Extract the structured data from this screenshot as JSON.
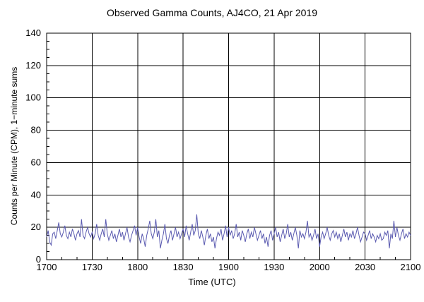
{
  "chart_data": {
    "type": "line",
    "title": "Observed Gamma Counts, AJ4CO, 21 Apr 2019",
    "xlabel": "Time (UTC)",
    "ylabel": "Counts per Minute (CPM), 1−minute sums",
    "x_tick_labels": [
      "1700",
      "1730",
      "1800",
      "1830",
      "1900",
      "1930",
      "2000",
      "2030",
      "2100"
    ],
    "y_tick_labels": [
      "0",
      "20",
      "40",
      "60",
      "80",
      "100",
      "120",
      "140"
    ],
    "xlim_minutes": [
      0,
      240
    ],
    "ylim": [
      0,
      140
    ],
    "x_major_interval_min": 30,
    "x_minor_interval_min": 10,
    "y_major_interval": 20,
    "y_minor_interval": 5,
    "grid": true,
    "legend": "none",
    "colors": {
      "line": "#5a5ab0",
      "grid": "#000000",
      "text": "#000000",
      "background": "#ffffff"
    },
    "series": [
      {
        "name": "gamma_counts_cpm",
        "start_time_utc": "1700",
        "step_minutes": 1,
        "values": [
          14,
          18,
          11,
          9,
          16,
          17,
          13,
          18,
          23,
          16,
          14,
          17,
          21,
          15,
          13,
          17,
          14,
          19,
          16,
          12,
          16,
          18,
          14,
          25,
          15,
          13,
          17,
          20,
          16,
          14,
          17,
          13,
          16,
          22,
          15,
          12,
          16,
          19,
          14,
          25,
          16,
          12,
          15,
          18,
          13,
          16,
          11,
          15,
          19,
          14,
          17,
          12,
          16,
          20,
          14,
          11,
          15,
          18,
          21,
          15,
          20,
          14,
          10,
          16,
          13,
          8,
          15,
          19,
          24,
          16,
          13,
          17,
          25,
          14,
          18,
          7,
          12,
          16,
          22,
          13,
          10,
          15,
          18,
          12,
          16,
          20,
          14,
          17,
          13,
          16,
          19,
          14,
          21,
          16,
          12,
          17,
          22,
          15,
          18,
          28,
          16,
          13,
          18,
          14,
          9,
          15,
          19,
          13,
          16,
          11,
          14,
          7,
          13,
          17,
          15,
          19,
          12,
          16,
          21,
          14,
          20,
          15,
          18,
          13,
          16,
          22,
          14,
          17,
          12,
          18,
          15,
          11,
          16,
          19,
          13,
          17,
          14,
          20,
          16,
          12,
          15,
          18,
          13,
          16,
          10,
          14,
          8,
          15,
          18,
          12,
          16,
          20,
          14,
          17,
          11,
          15,
          19,
          13,
          16,
          22,
          14,
          17,
          12,
          16,
          20,
          15,
          7,
          18,
          14,
          16,
          13,
          17,
          24,
          14,
          16,
          12,
          15,
          19,
          13,
          16,
          8,
          14,
          17,
          13,
          16,
          20,
          15,
          12,
          16,
          18,
          14,
          17,
          13,
          16,
          11,
          15,
          19,
          14,
          17,
          12,
          16,
          14,
          18,
          13,
          16,
          20,
          15,
          11,
          14,
          17,
          16,
          12,
          15,
          18,
          13,
          16,
          14,
          11,
          15,
          13,
          16,
          12,
          13,
          17,
          15,
          18,
          7,
          16,
          13,
          24,
          14,
          20,
          15,
          12,
          16,
          19,
          13,
          16,
          14,
          17,
          15
        ]
      }
    ]
  }
}
